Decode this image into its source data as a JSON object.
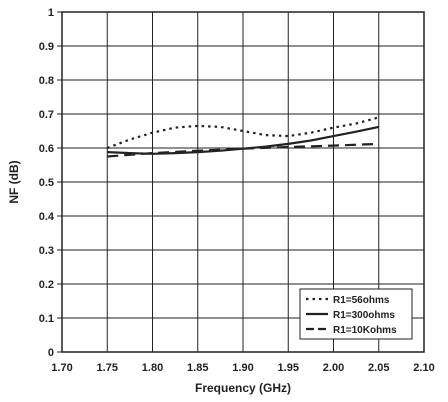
{
  "chart_data": {
    "type": "line",
    "title": "",
    "xlabel": "Frequency (GHz)",
    "ylabel": "NF (dB)",
    "xlim": [
      1.7,
      2.1
    ],
    "ylim": [
      0,
      1
    ],
    "x_ticks": [
      "1.70",
      "1.75",
      "1.80",
      "1.85",
      "1.90",
      "1.95",
      "2.00",
      "2.05",
      "2.10"
    ],
    "y_ticks": [
      "0",
      "0.1",
      "0.2",
      "0.3",
      "0.4",
      "0.5",
      "0.6",
      "0.7",
      "0.8",
      "0.9",
      "1"
    ],
    "grid": true,
    "legend_position": "bottom-right",
    "series": [
      {
        "name": "R1=56ohms",
        "style": "dotted",
        "color": "#222222",
        "x": [
          1.75,
          1.775,
          1.8,
          1.825,
          1.85,
          1.875,
          1.9,
          1.925,
          1.95,
          1.975,
          2.0,
          2.025,
          2.05
        ],
        "y": [
          0.6,
          0.625,
          0.645,
          0.66,
          0.665,
          0.662,
          0.65,
          0.638,
          0.635,
          0.645,
          0.66,
          0.672,
          0.69
        ]
      },
      {
        "name": "R1=300ohms",
        "style": "solid",
        "color": "#222222",
        "x": [
          1.75,
          1.775,
          1.8,
          1.825,
          1.85,
          1.875,
          1.9,
          1.925,
          1.95,
          1.975,
          2.0,
          2.025,
          2.05
        ],
        "y": [
          0.588,
          0.585,
          0.583,
          0.585,
          0.588,
          0.592,
          0.598,
          0.604,
          0.612,
          0.622,
          0.635,
          0.648,
          0.662
        ]
      },
      {
        "name": "R1=10Kohms",
        "style": "dashed",
        "color": "#222222",
        "x": [
          1.75,
          1.8,
          1.85,
          1.9,
          1.95,
          2.0,
          2.05
        ],
        "y": [
          0.575,
          0.585,
          0.592,
          0.598,
          0.603,
          0.607,
          0.612
        ]
      }
    ]
  }
}
